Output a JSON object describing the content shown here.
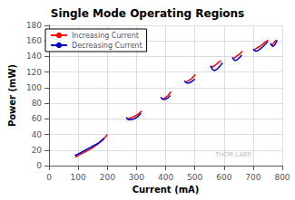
{
  "chart_data": {
    "type": "line",
    "title": "Single Mode Operating Regions",
    "xlabel": "Current (mA)",
    "ylabel": "Power (mW)",
    "xlim": [
      0,
      800
    ],
    "ylim": [
      0,
      180
    ],
    "xticks": [
      0,
      100,
      200,
      300,
      400,
      500,
      600,
      700,
      800
    ],
    "yticks": [
      0,
      20,
      40,
      60,
      80,
      100,
      120,
      140,
      160,
      180
    ],
    "grid": true,
    "legend": "upper left",
    "annotations": [
      "THOR LABS"
    ],
    "series": [
      {
        "name": "Increasing Current",
        "color": "#ff0000",
        "x": [
          90,
          105,
          125,
          145,
          165,
          185,
          200,
          null,
          268,
          278,
          292,
          305,
          318,
          null,
          388,
          398,
          408,
          418,
          null,
          468,
          478,
          490,
          502,
          null,
          557,
          567,
          577,
          590,
          null,
          632,
          642,
          653,
          663,
          null,
          703,
          713,
          723,
          733,
          743,
          752,
          null,
          762,
          770,
          778
        ],
        "values": [
          11,
          14,
          18,
          22,
          27,
          33,
          40,
          null,
          60,
          61,
          63,
          66,
          70,
          null,
          85,
          87,
          90,
          95,
          null,
          107,
          109,
          112,
          117,
          null,
          126,
          128,
          131,
          135,
          null,
          137,
          140,
          143,
          147,
          null,
          148,
          151,
          153,
          156,
          159,
          161,
          null,
          154,
          157,
          161
        ]
      },
      {
        "name": "Decreasing Current",
        "color": "#0000cc",
        "x": [
          88,
          95,
          110,
          130,
          150,
          170,
          188,
          null,
          265,
          268,
          272,
          280,
          292,
          305,
          315,
          null,
          383,
          387,
          390,
          398,
          408,
          416,
          null,
          464,
          468,
          472,
          480,
          490,
          500,
          null,
          553,
          557,
          561,
          568,
          577,
          587,
          595,
          null,
          628,
          632,
          636,
          642,
          652,
          661,
          null,
          700,
          704,
          707,
          714,
          722,
          732,
          742,
          750,
          null,
          759,
          763,
          766,
          772,
          778,
          782
        ],
        "values": [
          13,
          14,
          17,
          21,
          25,
          29,
          35,
          null,
          62,
          60,
          59,
          59,
          60,
          63,
          67,
          null,
          88,
          86,
          85,
          85,
          87,
          90,
          null,
          109,
          107,
          106,
          106,
          108,
          111,
          null,
          128,
          126,
          123,
          122,
          124,
          128,
          132,
          null,
          139,
          137,
          135,
          135,
          138,
          142,
          null,
          150,
          148,
          147,
          147,
          149,
          152,
          156,
          159,
          null,
          157,
          155,
          153,
          154,
          157,
          161
        ]
      }
    ]
  }
}
